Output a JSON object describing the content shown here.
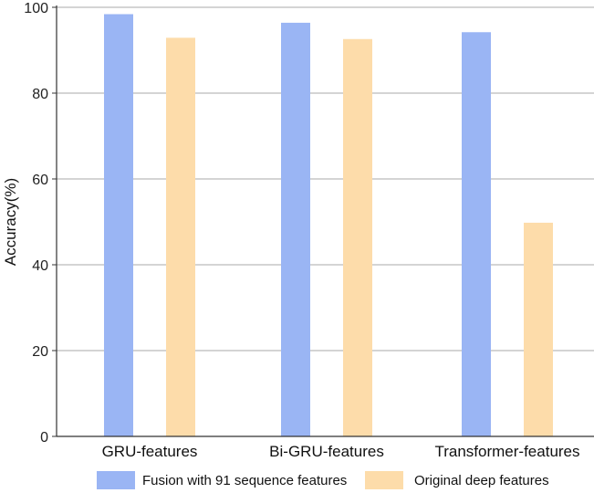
{
  "chart_data": {
    "type": "bar",
    "title": "",
    "xlabel": "",
    "ylabel": "Accuracy(%)",
    "ylim": [
      0,
      100
    ],
    "yticks": [
      0,
      20,
      40,
      60,
      80,
      100
    ],
    "grid": true,
    "legend_position": "bottom",
    "categories": [
      "GRU-features",
      "Bi-GRU-features",
      "Transformer-features"
    ],
    "series": [
      {
        "name": "Fusion with 91 sequence features",
        "color": "#9ab5f4",
        "values": [
          98.4,
          96.4,
          94.2
        ]
      },
      {
        "name": "Original deep features",
        "color": "#fddcaa",
        "values": [
          92.9,
          92.6,
          49.8
        ]
      }
    ]
  }
}
